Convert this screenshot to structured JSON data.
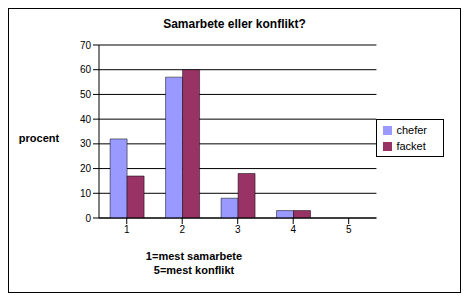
{
  "chart_data": {
    "type": "bar",
    "title": "Samarbete eller konflikt?",
    "ylabel": "procent",
    "xlabel": [
      "1=mest samarbete",
      "5=mest konflikt"
    ],
    "categories": [
      "1",
      "2",
      "3",
      "4",
      "5"
    ],
    "series": [
      {
        "name": "chefer",
        "color": "#9999ff",
        "values": [
          32,
          57,
          8,
          3,
          0
        ]
      },
      {
        "name": "facket",
        "color": "#993366",
        "values": [
          17,
          60,
          18,
          3,
          0
        ]
      }
    ],
    "ylim": [
      0,
      70
    ],
    "yticks": [
      0,
      10,
      20,
      30,
      40,
      50,
      60,
      70
    ],
    "grid": true,
    "legend": "right"
  }
}
